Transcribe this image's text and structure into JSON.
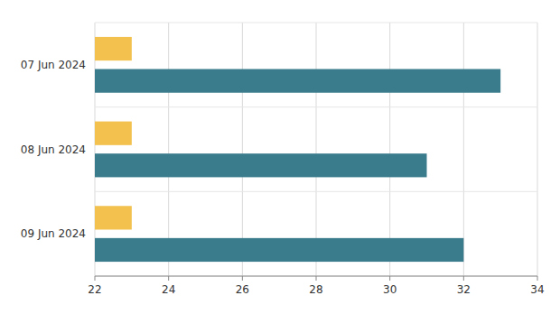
{
  "chart_data": {
    "type": "bar",
    "orientation": "horizontal",
    "categories": [
      "07 Jun 2024",
      "08 Jun 2024",
      "09 Jun 2024"
    ],
    "series": [
      {
        "color": "#F2C14E",
        "values": [
          23,
          23,
          23
        ]
      },
      {
        "color": "#3A7C8C",
        "values": [
          33,
          31,
          32
        ]
      }
    ],
    "xlim": [
      22,
      34
    ],
    "xticks": [
      22,
      24,
      26,
      28,
      30,
      32,
      34
    ],
    "grid": true
  }
}
